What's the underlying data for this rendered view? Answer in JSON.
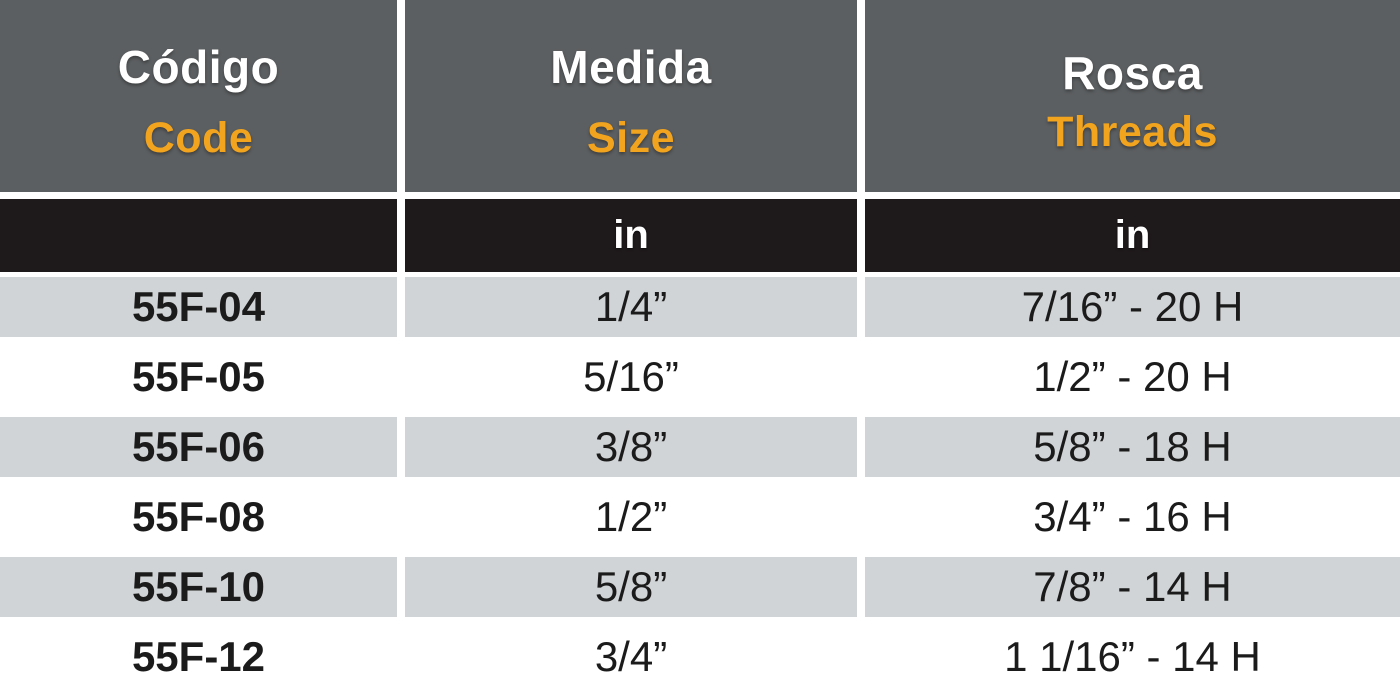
{
  "chart_data": {
    "type": "table",
    "columns": [
      {
        "title_es": "Código",
        "title_en": "Code",
        "unit": ""
      },
      {
        "title_es": "Medida",
        "title_en": "Size",
        "unit": "in"
      },
      {
        "title_es": "Rosca",
        "title_en": "Threads",
        "unit": "in"
      }
    ],
    "rows": [
      {
        "code": "55F-04",
        "size": "1/4”",
        "threads": "7/16” - 20 H"
      },
      {
        "code": "55F-05",
        "size": "5/16”",
        "threads": "1/2” - 20 H"
      },
      {
        "code": "55F-06",
        "size": "3/8”",
        "threads": "5/8” - 18 H"
      },
      {
        "code": "55F-08",
        "size": "1/2”",
        "threads": "3/4” - 16 H"
      },
      {
        "code": "55F-10",
        "size": "5/8”",
        "threads": "7/8” - 14 H"
      },
      {
        "code": "55F-12",
        "size": "3/4”",
        "threads": "1 1/16” - 14 H"
      }
    ],
    "layout": {
      "header_languages": [
        "es",
        "en"
      ],
      "row_striping": "alternating gray/white starting gray",
      "grid": "white gaps between columns and rows"
    }
  },
  "colors": {
    "header_bg": "#5C5F61",
    "header_text_primary": "#FFFFFF",
    "header_text_accent": "#F2A41F",
    "unit_row_bg": "#1E191B",
    "unit_row_text": "#FFFFFF",
    "stripe_gray": "#D1D4D6",
    "row_white": "#FFFFFF",
    "data_text": "#1B1B1B"
  }
}
